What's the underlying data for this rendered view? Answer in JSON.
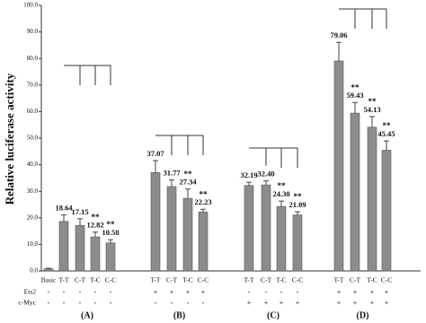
{
  "chart_data": {
    "type": "bar",
    "y_label": "Relative luciferase activity",
    "categories": [
      "Basic",
      "T-T",
      "C-T",
      "T-C",
      "C-C",
      "T-T",
      "C-T",
      "T-C",
      "C-C",
      "T-T",
      "C-T",
      "T-C",
      "C-C",
      "T-T",
      "C-T",
      "T-C",
      "C-C"
    ],
    "values": [
      0.8,
      18.64,
      17.15,
      12.82,
      10.58,
      37.07,
      31.77,
      27.34,
      22.23,
      32.19,
      32.4,
      24.3,
      21.09,
      79.06,
      59.43,
      54.13,
      45.45
    ],
    "errors": [
      0.2,
      2.5,
      2.5,
      1.8,
      1.2,
      4.5,
      2.5,
      3.5,
      1.0,
      1.2,
      1.5,
      2.0,
      1.2,
      7.0,
      4.0,
      4.0,
      3.5
    ],
    "value_labels": [
      null,
      "18.64",
      "17.15",
      "12.82",
      "10.58",
      "37.07",
      "31.77",
      "27.34",
      "22.23",
      "32.19",
      "32.40",
      "24.30",
      "21.09",
      "79.06",
      "59.43",
      "54.13",
      "45.45"
    ],
    "significance": [
      null,
      null,
      null,
      "**",
      "**",
      null,
      null,
      "**",
      "**",
      null,
      null,
      "**",
      "**",
      null,
      "**",
      "**",
      "**"
    ],
    "color": "#8c8c8c",
    "ylim": [
      0,
      100
    ],
    "yticks": [
      {
        "value": 0,
        "label": "0.0"
      },
      {
        "value": 10,
        "label": "10.0"
      },
      {
        "value": 20,
        "label": "20.0"
      },
      {
        "value": 30,
        "label": "30.0"
      },
      {
        "value": 40,
        "label": "40.0"
      },
      {
        "value": 50,
        "label": "50.0"
      },
      {
        "value": 60,
        "label": "60.0"
      },
      {
        "value": 70,
        "label": "70.0"
      },
      {
        "value": 80,
        "label": "80.0"
      },
      {
        "value": 90,
        "label": "90.0"
      },
      {
        "value": 100,
        "label": "100.0"
      }
    ],
    "conditions": [
      {
        "name": "Ets2",
        "values": [
          "-",
          "-",
          "-",
          "-",
          "-",
          "+",
          "+",
          "+",
          "+",
          "-",
          "-",
          "-",
          "-",
          "+",
          "+",
          "+",
          "+"
        ]
      },
      {
        "name": "c-Myc",
        "values": [
          "-",
          "-",
          "-",
          "-",
          "-",
          "-",
          "-",
          "-",
          "-",
          "+",
          "+",
          "+",
          "+",
          "+",
          "+",
          "+",
          "+"
        ]
      }
    ],
    "group_labels": [
      "(A)",
      "(B)",
      "(C)",
      "(D)"
    ]
  }
}
